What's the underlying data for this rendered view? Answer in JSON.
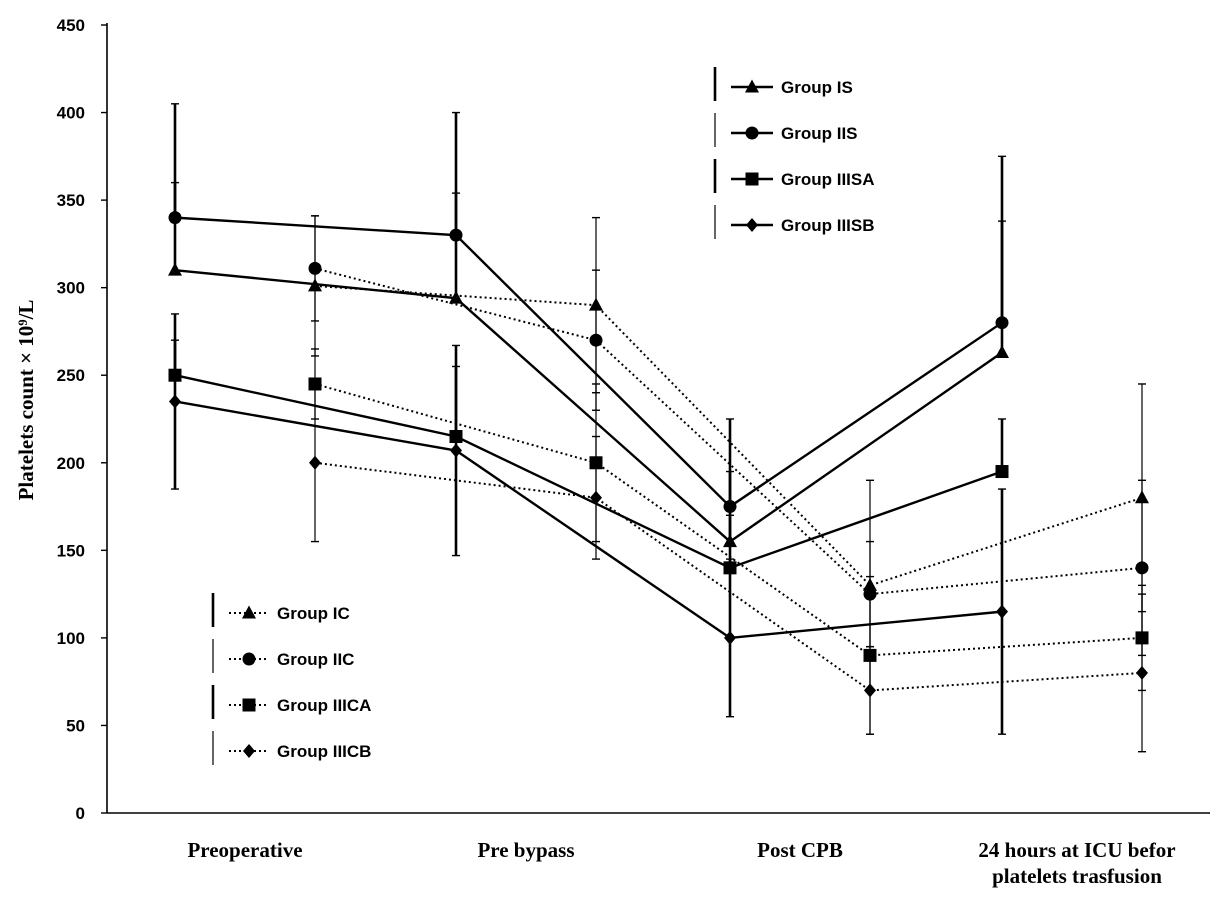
{
  "chart_data": {
    "type": "line",
    "ylabel": "Platelets count × 10⁹/L",
    "ylim": [
      0,
      450
    ],
    "yticks": [
      "0",
      "50",
      "100",
      "150",
      "200",
      "250",
      "300",
      "350",
      "400",
      "450"
    ],
    "categories": [
      "Preoperative",
      "Pre bypass",
      "Post CPB",
      "24 hours at ICU befor platelets trasfusion"
    ],
    "grid": false,
    "series": [
      {
        "name": "Group IS",
        "style": "solid",
        "marker": "triangle",
        "side": "left",
        "values": [
          310,
          294,
          155,
          263
        ],
        "errors": [
          50,
          60,
          40,
          75
        ]
      },
      {
        "name": "Group IIS",
        "style": "solid",
        "marker": "circle",
        "side": "left",
        "values": [
          340,
          330,
          175,
          280
        ],
        "errors": [
          65,
          70,
          50,
          95
        ]
      },
      {
        "name": "Group IIISA",
        "style": "solid",
        "marker": "square",
        "side": "left",
        "values": [
          250,
          215,
          140,
          195
        ],
        "errors": [
          20,
          40,
          30,
          30
        ]
      },
      {
        "name": "Group IIISB",
        "style": "solid",
        "marker": "diamond",
        "side": "left",
        "values": [
          235,
          207,
          100,
          115
        ],
        "errors": [
          50,
          60,
          45,
          70
        ]
      },
      {
        "name": "Group IC",
        "style": "dotted",
        "marker": "triangle",
        "side": "right",
        "values": [
          301,
          290,
          130,
          180
        ],
        "errors": [
          40,
          50,
          60,
          65
        ]
      },
      {
        "name": "Group IIC",
        "style": "dotted",
        "marker": "circle",
        "side": "right",
        "values": [
          311,
          270,
          125,
          140
        ],
        "errors": [
          30,
          40,
          30,
          50
        ]
      },
      {
        "name": "Group IIICA",
        "style": "dotted",
        "marker": "square",
        "side": "right",
        "values": [
          245,
          200,
          90,
          100
        ],
        "errors": [
          20,
          45,
          45,
          30
        ]
      },
      {
        "name": "Group IIICB",
        "style": "dotted",
        "marker": "diamond",
        "side": "right",
        "values": [
          200,
          180,
          70,
          80
        ],
        "errors": [
          45,
          35,
          25,
          45
        ]
      }
    ],
    "legends": [
      {
        "position": "top-center",
        "items": [
          "Group IS",
          "Group IIS",
          "Group IIISA",
          "Group IIISB"
        ]
      },
      {
        "position": "bottom-left",
        "items": [
          "Group IC",
          "Group IIC",
          "Group IIICA",
          "Group IIICB"
        ]
      }
    ]
  }
}
